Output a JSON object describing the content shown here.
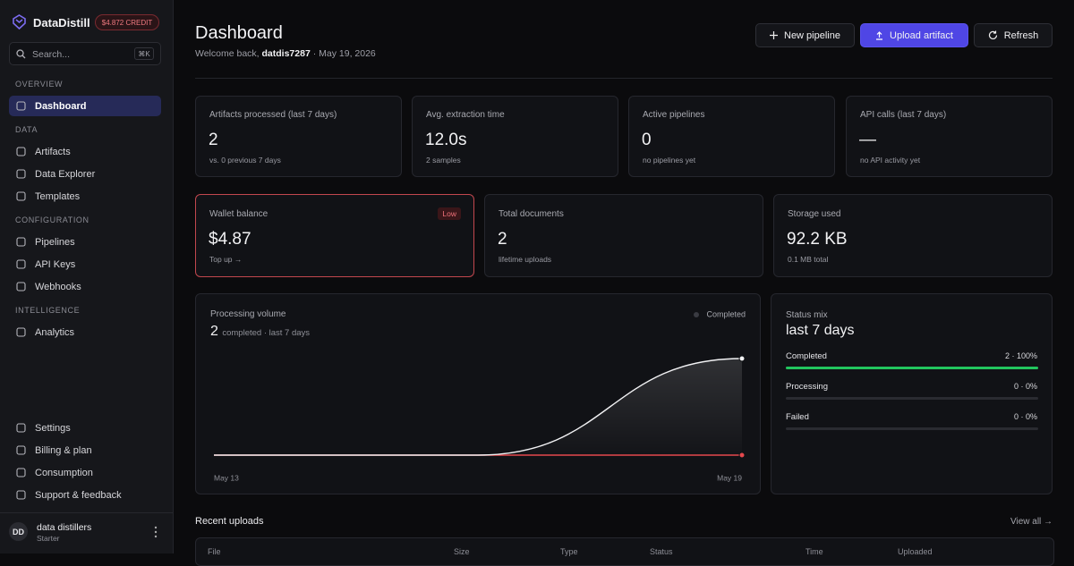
{
  "sidebar": {
    "brand": "DataDistill",
    "credit": "$4.872 CREDIT",
    "search_placeholder": "Search...",
    "search_shortcut": "⌘K",
    "sections": [
      {
        "title": "OVERVIEW",
        "items": [
          "Dashboard"
        ]
      },
      {
        "title": "DATA",
        "items": [
          "Artifacts",
          "Data Explorer",
          "Templates"
        ]
      },
      {
        "title": "CONFIGURATION",
        "items": [
          "Pipelines",
          "API Keys",
          "Webhooks"
        ]
      },
      {
        "title": "INTELLIGENCE",
        "items": [
          "Analytics"
        ]
      }
    ],
    "footer_items": [
      "Settings",
      "Billing & plan",
      "Consumption",
      "Support & feedback"
    ],
    "user": {
      "initials": "DD",
      "name": "data distillers",
      "plan": "Starter"
    }
  },
  "header": {
    "title": "Dashboard",
    "greeting": "Welcome back,",
    "username": "datdis7287",
    "date": "· May 19, 2026",
    "buttons": [
      "New pipeline",
      "Upload artifact",
      "Refresh"
    ]
  },
  "stats": [
    {
      "label": "Artifacts processed (last 7 days)",
      "value": 2,
      "note": "vs. 0 previous 7 days"
    },
    {
      "label": "Avg. extraction time",
      "value": "12.0s",
      "note": "2 samples"
    },
    {
      "label": "Active pipelines",
      "value": 0,
      "note": "no pipelines yet"
    },
    {
      "label": "API calls (last 7 days)",
      "value": "—",
      "note": "no API activity yet"
    }
  ],
  "stats2": [
    {
      "label": "Wallet balance",
      "value": "$4.87",
      "note": "Top up →",
      "badge": "Low"
    },
    {
      "label": "Total documents",
      "value": 2,
      "note": "lifetime uploads"
    },
    {
      "label": "Storage used",
      "value": "92.2 KB",
      "note": "0.1 MB total"
    }
  ],
  "chart_data": {
    "type": "line",
    "title": "Processing volume",
    "total": 2,
    "total_note": "completed · last 7 days",
    "categories": [
      "May 13",
      null,
      "May 19"
    ],
    "series": [
      {
        "name": "Completed",
        "color": "#f2f2f4",
        "values": [
          0,
          0,
          2
        ]
      },
      {
        "color": "#e5484d",
        "values": [
          0,
          0,
          0
        ]
      }
    ],
    "ylim": [
      0,
      2
    ]
  },
  "status_mix": {
    "title": "Status mix",
    "period": "last 7 days",
    "items": [
      {
        "name": "Completed",
        "value": 100,
        "value_label": "2 · 100%",
        "color": "#22c55e"
      },
      {
        "name": "Processing",
        "value": 0,
        "value_label": "0 · 0%",
        "color": "#22c55e"
      },
      {
        "name": "Failed",
        "value": 0,
        "value_label": "0 · 0%",
        "color": "#22c55e"
      }
    ]
  },
  "recent_uploads": {
    "title": "Recent uploads",
    "link": "View all →",
    "columns": [
      "File",
      "Size",
      "Type",
      "Status",
      "Time",
      "Uploaded"
    ]
  }
}
